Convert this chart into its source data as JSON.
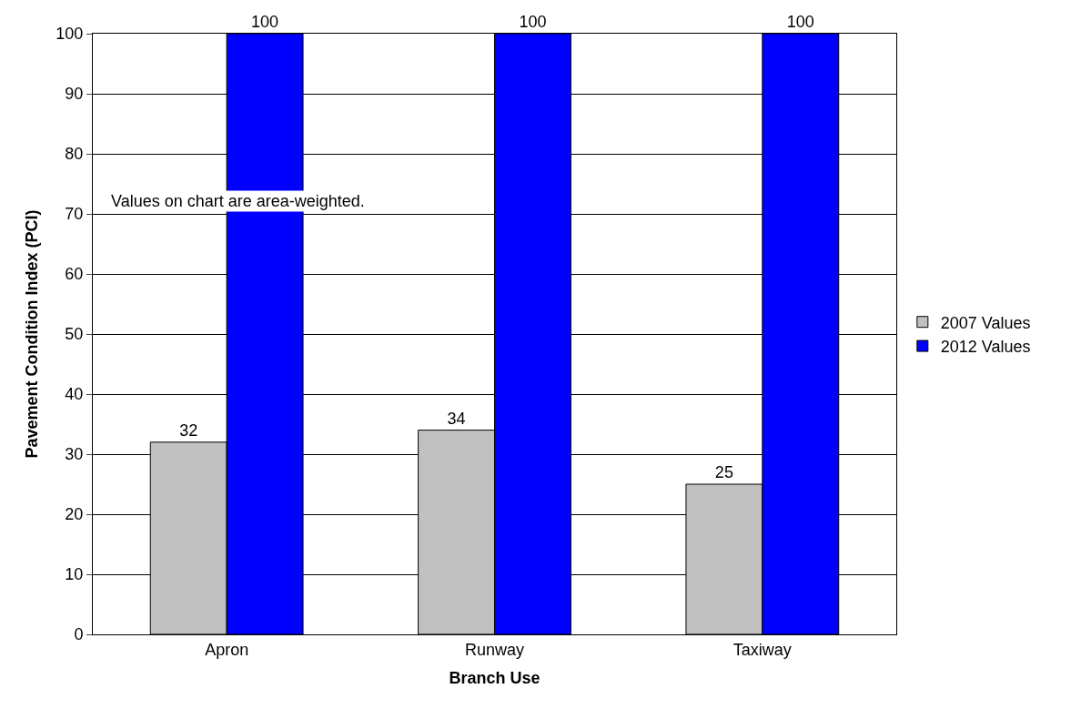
{
  "chart_data": {
    "type": "bar",
    "xlabel": "Branch Use",
    "ylabel": "Pavement Condition Index (PCI)",
    "categories": [
      "Apron",
      "Runway",
      "Taxiway"
    ],
    "series": [
      {
        "name": "2007 Values",
        "color": "#c0c0c0",
        "values": [
          32,
          34,
          25
        ]
      },
      {
        "name": "2012 Values",
        "color": "#0000ff",
        "values": [
          100,
          100,
          100
        ]
      }
    ],
    "ylim": [
      0,
      100
    ],
    "yticks": [
      0,
      10,
      20,
      30,
      40,
      50,
      60,
      70,
      80,
      90,
      100
    ],
    "grid": "y",
    "legend": "right",
    "data_labels": true,
    "annotations": [
      "Values on chart are area-weighted."
    ]
  }
}
